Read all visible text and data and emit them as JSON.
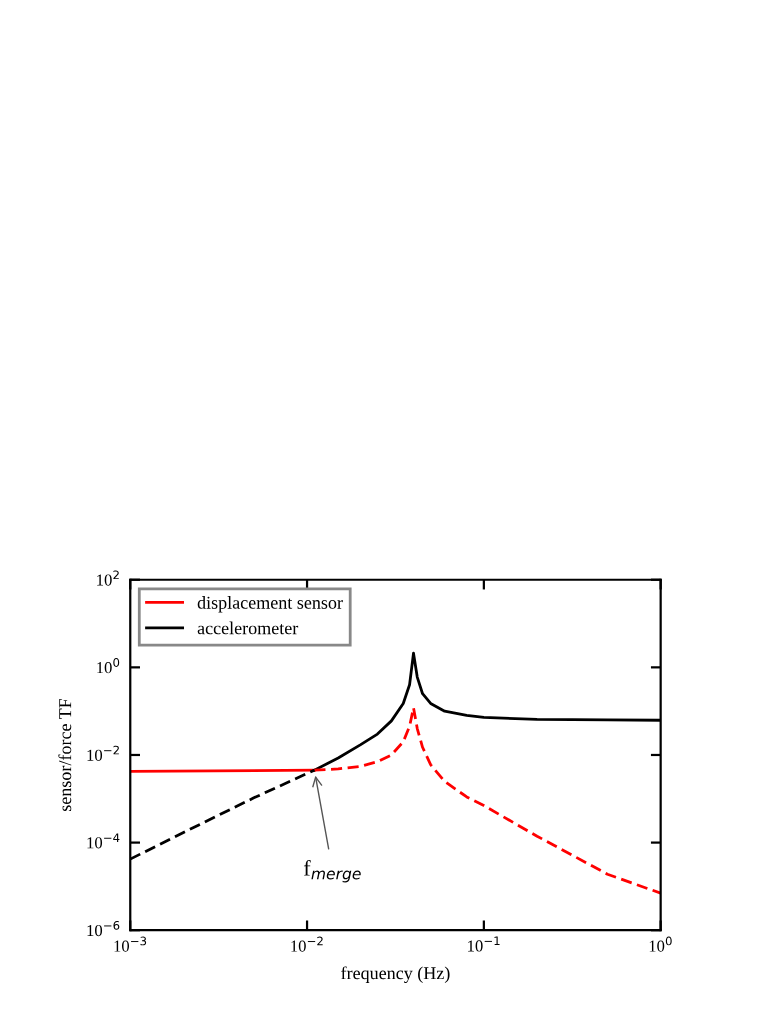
{
  "chart_data": {
    "type": "line",
    "xlabel": "frequency (Hz)",
    "ylabel": "sensor/force TF",
    "log": "xy",
    "xlim": [
      0.001,
      1
    ],
    "ylim": [
      1e-06,
      100
    ],
    "xticks": [
      {
        "value": 0.001,
        "label": "10$^{−3}$"
      },
      {
        "value": 0.01,
        "label": "10$^{−2}$"
      },
      {
        "value": 0.1,
        "label": "10$^{−1}$"
      },
      {
        "value": 1,
        "label": "10$^{0}$"
      }
    ],
    "yticks": [
      {
        "value": 1e-06,
        "label": "10$^{−6}$"
      },
      {
        "value": 0.0001,
        "label": "10$^{−4}$"
      },
      {
        "value": 0.01,
        "label": "10$^{−2}$"
      },
      {
        "value": 1,
        "label": "10$^{0}$"
      },
      {
        "value": 100,
        "label": "10$^{2}$"
      }
    ],
    "legend": "top left",
    "grid": false,
    "marker": "none",
    "series": [
      {
        "name": "displacement sensor",
        "color": "#ff0000",
        "line_style": "solid",
        "x": [
          0.001,
          0.011
        ],
        "values": [
          0.0042,
          0.0045
        ]
      },
      {
        "name": "accelerometer",
        "color": "#000000",
        "line_style": "solid",
        "x": [
          0.011,
          0.015,
          0.02,
          0.025,
          0.03,
          0.035,
          0.038,
          0.04,
          0.042,
          0.045,
          0.05,
          0.06,
          0.08,
          0.1,
          0.2,
          0.5,
          1
        ],
        "values": [
          0.0045,
          0.0085,
          0.017,
          0.03,
          0.06,
          0.15,
          0.4,
          2.1,
          0.6,
          0.25,
          0.15,
          0.1,
          0.08,
          0.072,
          0.065,
          0.063,
          0.062
        ]
      },
      {
        "color": "#ff0000",
        "line_style": "dashed",
        "x": [
          0.011,
          0.015,
          0.02,
          0.025,
          0.03,
          0.035,
          0.038,
          0.04,
          0.042,
          0.045,
          0.05,
          0.06,
          0.08,
          0.1,
          0.2,
          0.5,
          1
        ],
        "values": [
          0.0045,
          0.0048,
          0.0055,
          0.007,
          0.01,
          0.02,
          0.045,
          0.12,
          0.04,
          0.015,
          0.006,
          0.0025,
          0.0011,
          0.0007,
          0.00014,
          1.9e-05,
          7e-06
        ]
      },
      {
        "color": "#000000",
        "line_style": "dashed",
        "x": [
          0.001,
          0.002,
          0.005,
          0.011
        ],
        "values": [
          4.2e-05,
          0.00017,
          0.00105,
          0.0045
        ]
      }
    ],
    "annotations": [
      {
        "text": "f$_{merge}$",
        "x": 0.011,
        "y": 0.0045
      }
    ]
  }
}
